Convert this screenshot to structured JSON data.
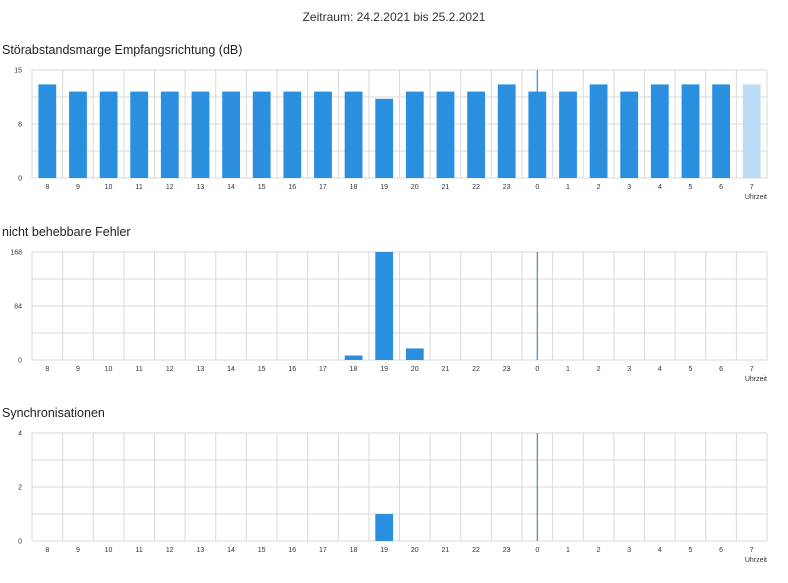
{
  "header": {
    "period_label": "Zeitraum: 24.2.2021 bis 25.2.2021"
  },
  "colors": {
    "bar": "#2b8fe0",
    "bar_future": "#bcdcf5",
    "grid": "#d9d9d9",
    "marker": "#2b8fe0"
  },
  "chart_data": [
    {
      "type": "bar",
      "title": "Störabstandsmarge Empfangsrichtung (dB)",
      "xlabel": "Uhrzeit",
      "ylabel": "",
      "categories": [
        "8",
        "9",
        "10",
        "11",
        "12",
        "13",
        "14",
        "15",
        "16",
        "17",
        "18",
        "19",
        "20",
        "21",
        "22",
        "23",
        "0",
        "1",
        "2",
        "3",
        "4",
        "5",
        "6",
        "7"
      ],
      "values": [
        13,
        12,
        12,
        12,
        12,
        12,
        12,
        12,
        12,
        12,
        12,
        11,
        12,
        12,
        12,
        13,
        12,
        12,
        13,
        12,
        13,
        13,
        13,
        13
      ],
      "highlight_last_bar_light": true,
      "ylim": [
        0,
        15
      ],
      "yticks": [
        "0",
        "8",
        "15"
      ],
      "day_boundary_category": "0",
      "grid": true
    },
    {
      "type": "bar",
      "title": "nicht behebbare Fehler",
      "xlabel": "Uhrzeit",
      "ylabel": "",
      "categories": [
        "8",
        "9",
        "10",
        "11",
        "12",
        "13",
        "14",
        "15",
        "16",
        "17",
        "18",
        "19",
        "20",
        "21",
        "22",
        "23",
        "0",
        "1",
        "2",
        "3",
        "4",
        "5",
        "6",
        "7"
      ],
      "values": [
        0,
        0,
        0,
        0,
        0,
        0,
        0,
        0,
        0,
        0,
        7,
        168,
        18,
        0,
        0,
        0,
        0,
        0,
        0,
        0,
        0,
        0,
        0,
        0
      ],
      "highlight_last_bar_light": false,
      "ylim": [
        0,
        168
      ],
      "yticks": [
        "0",
        "84",
        "168"
      ],
      "day_boundary_category": "0",
      "grid": true
    },
    {
      "type": "bar",
      "title": "Synchronisationen",
      "xlabel": "Uhrzeit",
      "ylabel": "",
      "categories": [
        "8",
        "9",
        "10",
        "11",
        "12",
        "13",
        "14",
        "15",
        "16",
        "17",
        "18",
        "19",
        "20",
        "21",
        "22",
        "23",
        "0",
        "1",
        "2",
        "3",
        "4",
        "5",
        "6",
        "7"
      ],
      "values": [
        0,
        0,
        0,
        0,
        0,
        0,
        0,
        0,
        0,
        0,
        0,
        1,
        0,
        0,
        0,
        0,
        0,
        0,
        0,
        0,
        0,
        0,
        0,
        0
      ],
      "highlight_last_bar_light": false,
      "ylim": [
        0,
        4
      ],
      "yticks": [
        "0",
        "2",
        "4"
      ],
      "day_boundary_category": "0",
      "grid": true
    }
  ]
}
